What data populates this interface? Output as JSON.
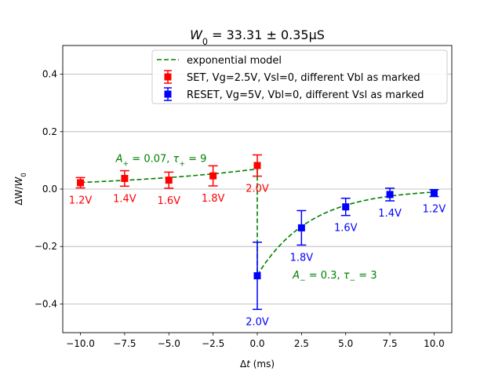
{
  "chart_data": {
    "type": "scatter",
    "title": "W_0 = 33.31 ± 0.35μS",
    "xlabel": "Δt (ms)",
    "ylabel": "ΔW/W_0",
    "xlim": [
      -11,
      11
    ],
    "ylim": [
      -0.5,
      0.5
    ],
    "xticks": [
      -10,
      -7.5,
      -5,
      -2.5,
      0,
      2.5,
      5,
      7.5,
      10
    ],
    "xtick_labels": [
      "−10.0",
      "−7.5",
      "−5.0",
      "−2.5",
      "0.0",
      "2.5",
      "5.0",
      "7.5",
      "10.0"
    ],
    "yticks": [
      -0.4,
      -0.2,
      0.0,
      0.2,
      0.4
    ],
    "ytick_labels": [
      "−0.4",
      "−0.2",
      "0.0",
      "0.2",
      "0.4"
    ],
    "grid": "horizontal",
    "legend_position": "top-right",
    "series": [
      {
        "name": "SET, Vg=2.5V, Vsl=0, different Vbl as marked",
        "color": "#ff0000",
        "marker": "square",
        "x": [
          -10,
          -7.5,
          -5,
          -2.5,
          0
        ],
        "y": [
          0.022,
          0.037,
          0.031,
          0.046,
          0.082
        ],
        "yerr": [
          0.018,
          0.027,
          0.028,
          0.035,
          0.037
        ],
        "point_labels": [
          "1.2V",
          "1.4V",
          "1.6V",
          "1.8V",
          "2.0V"
        ]
      },
      {
        "name": "RESET, Vg=5V, Vbl=0, different Vsl as marked",
        "color": "#0000ff",
        "marker": "square",
        "x": [
          0,
          2.5,
          5,
          7.5,
          10
        ],
        "y": [
          -0.302,
          -0.135,
          -0.062,
          -0.019,
          -0.014
        ],
        "yerr": [
          0.117,
          0.06,
          0.03,
          0.022,
          0.012
        ],
        "point_labels": [
          "2.0V",
          "1.8V",
          "1.6V",
          "1.4V",
          "1.2V"
        ]
      }
    ],
    "model": {
      "name": "exponential model",
      "color": "#008000",
      "style": "dashed",
      "A_plus": 0.07,
      "tau_plus": 9,
      "A_minus": 0.3,
      "tau_minus": 3
    },
    "annotations": [
      {
        "text": "A_+ = 0.07, τ_+ = 9",
        "x": -8.0,
        "y": 0.105,
        "color": "#008000"
      },
      {
        "text": "A_− = 0.3, τ_− = 3",
        "x": 2.0,
        "y": -0.3,
        "color": "#008000"
      }
    ]
  }
}
